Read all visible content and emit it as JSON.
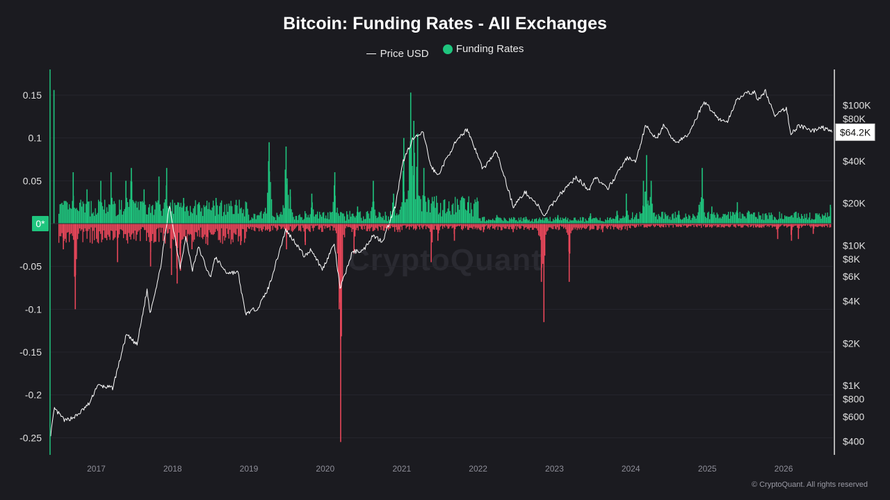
{
  "chart_data": {
    "type": "bar",
    "title": "Bitcoin: Funding Rates - All Exchanges",
    "legend": {
      "placement": "top-center",
      "entries": [
        {
          "name": "Price USD",
          "marker": "line",
          "color": "#ffffff"
        },
        {
          "name": "Funding Rates",
          "marker": "dot",
          "color": "#1fc57e"
        }
      ]
    },
    "colors": {
      "positive": "#1fc57e",
      "negative": "#e8475a",
      "price": "#ffffff",
      "zero_axis": "#1fc57e"
    },
    "x_axis": {
      "type": "date",
      "range": [
        "2016-05-25",
        "2026-08-25"
      ],
      "ticks": [
        {
          "date": "2017-01-01",
          "label": "2017"
        },
        {
          "date": "2018-01-01",
          "label": "2018"
        },
        {
          "date": "2019-01-01",
          "label": "2019"
        },
        {
          "date": "2020-01-01",
          "label": "2020"
        },
        {
          "date": "2021-01-01",
          "label": "2021"
        },
        {
          "date": "2022-01-01",
          "label": "2022"
        },
        {
          "date": "2023-01-01",
          "label": "2023"
        },
        {
          "date": "2024-01-01",
          "label": "2024"
        },
        {
          "date": "2025-01-01",
          "label": "2025"
        },
        {
          "date": "2026-01-01",
          "label": "2026"
        }
      ]
    },
    "y_left": {
      "name": "Funding Rates",
      "range": [
        -0.27,
        0.18
      ],
      "ticks": [
        {
          "value": 0.15,
          "label": "0.15"
        },
        {
          "value": 0.1,
          "label": "0.1"
        },
        {
          "value": 0.05,
          "label": "0.05"
        },
        {
          "value": 0,
          "label": "0*"
        },
        {
          "value": -0.05,
          "label": "-0.05"
        },
        {
          "value": -0.1,
          "label": "-0.1"
        },
        {
          "value": -0.15,
          "label": "-0.15"
        },
        {
          "value": -0.2,
          "label": "-0.2"
        },
        {
          "value": -0.25,
          "label": "-0.25"
        }
      ]
    },
    "y_right": {
      "name": "Price USD",
      "scale": "log",
      "range": [
        320,
        180000
      ],
      "ticks": [
        {
          "value": 100000,
          "label": "$100K"
        },
        {
          "value": 80000,
          "label": "$80K"
        },
        {
          "value": 40000,
          "label": "$40K"
        },
        {
          "value": 20000,
          "label": "$20K"
        },
        {
          "value": 10000,
          "label": "$10K"
        },
        {
          "value": 8000,
          "label": "$8K"
        },
        {
          "value": 6000,
          "label": "$6K"
        },
        {
          "value": 4000,
          "label": "$4K"
        },
        {
          "value": 2000,
          "label": "$2K"
        },
        {
          "value": 1000,
          "label": "$1K"
        },
        {
          "value": 800,
          "label": "$800"
        },
        {
          "value": 600,
          "label": "$600"
        },
        {
          "value": 400,
          "label": "$400"
        }
      ],
      "current": {
        "value": 64200,
        "label": "$64.2K"
      }
    },
    "grid": true,
    "price_series": [
      [
        "2016-05-28",
        450
      ],
      [
        "2016-06-15",
        680
      ],
      [
        "2016-08-05",
        560
      ],
      [
        "2016-10-01",
        610
      ],
      [
        "2016-12-01",
        750
      ],
      [
        "2017-01-05",
        1000
      ],
      [
        "2017-03-20",
        960
      ],
      [
        "2017-05-25",
        2300
      ],
      [
        "2017-07-15",
        1950
      ],
      [
        "2017-09-01",
        4800
      ],
      [
        "2017-09-15",
        3300
      ],
      [
        "2017-11-01",
        6500
      ],
      [
        "2017-12-17",
        19200
      ],
      [
        "2018-02-06",
        7000
      ],
      [
        "2018-03-05",
        11400
      ],
      [
        "2018-04-06",
        6700
      ],
      [
        "2018-05-05",
        9700
      ],
      [
        "2018-06-29",
        5900
      ],
      [
        "2018-07-25",
        8200
      ],
      [
        "2018-09-15",
        6400
      ],
      [
        "2018-11-10",
        6400
      ],
      [
        "2018-12-15",
        3250
      ],
      [
        "2019-02-15",
        3600
      ],
      [
        "2019-04-05",
        5000
      ],
      [
        "2019-06-26",
        12900
      ],
      [
        "2019-08-15",
        10300
      ],
      [
        "2019-09-25",
        8300
      ],
      [
        "2019-10-26",
        9400
      ],
      [
        "2019-12-18",
        6700
      ],
      [
        "2020-02-13",
        10300
      ],
      [
        "2020-03-12",
        4900
      ],
      [
        "2020-05-10",
        9000
      ],
      [
        "2020-07-01",
        9200
      ],
      [
        "2020-08-15",
        11800
      ],
      [
        "2020-10-01",
        10700
      ],
      [
        "2020-12-01",
        19000
      ],
      [
        "2021-01-08",
        40000
      ],
      [
        "2021-02-21",
        57000
      ],
      [
        "2021-04-14",
        63500
      ],
      [
        "2021-05-19",
        37000
      ],
      [
        "2021-06-22",
        31500
      ],
      [
        "2021-09-07",
        52000
      ],
      [
        "2021-11-10",
        68000
      ],
      [
        "2022-01-24",
        35000
      ],
      [
        "2022-03-29",
        47000
      ],
      [
        "2022-05-12",
        29000
      ],
      [
        "2022-06-18",
        19000
      ],
      [
        "2022-08-15",
        24000
      ],
      [
        "2022-10-15",
        19200
      ],
      [
        "2022-11-09",
        16000
      ],
      [
        "2023-01-25",
        23000
      ],
      [
        "2023-04-14",
        30500
      ],
      [
        "2023-06-15",
        25000
      ],
      [
        "2023-07-15",
        31000
      ],
      [
        "2023-09-11",
        25000
      ],
      [
        "2023-12-15",
        42500
      ],
      [
        "2024-01-23",
        39000
      ],
      [
        "2024-03-14",
        73000
      ],
      [
        "2024-05-01",
        57000
      ],
      [
        "2024-06-05",
        71000
      ],
      [
        "2024-08-05",
        54000
      ],
      [
        "2024-10-01",
        61000
      ],
      [
        "2024-12-17",
        106000
      ],
      [
        "2025-02-28",
        79000
      ],
      [
        "2025-04-08",
        76000
      ],
      [
        "2025-05-22",
        111000
      ],
      [
        "2025-07-14",
        122000
      ],
      [
        "2025-08-14",
        124000
      ],
      [
        "2025-09-01",
        108000
      ],
      [
        "2025-10-06",
        126000
      ],
      [
        "2025-11-21",
        83000
      ],
      [
        "2026-01-14",
        96000
      ],
      [
        "2026-02-05",
        62000
      ],
      [
        "2026-03-15",
        72000
      ],
      [
        "2026-05-15",
        65000
      ],
      [
        "2026-07-01",
        70000
      ],
      [
        "2026-08-20",
        64200
      ]
    ],
    "funding_spikes": [
      [
        "2016-06-10",
        0.156
      ],
      [
        "2016-09-10",
        0.06
      ],
      [
        "2016-11-15",
        0.04
      ],
      [
        "2017-01-20",
        0.05
      ],
      [
        "2017-03-10",
        0.06
      ],
      [
        "2017-05-20",
        0.05
      ],
      [
        "2017-06-15",
        0.065
      ],
      [
        "2017-08-15",
        0.04
      ],
      [
        "2017-10-25",
        0.055
      ],
      [
        "2017-12-01",
        0.065
      ],
      [
        "2018-02-20",
        0.03
      ],
      [
        "2018-05-05",
        0.025
      ],
      [
        "2018-07-25",
        0.03
      ],
      [
        "2019-04-05",
        0.095
      ],
      [
        "2019-06-25",
        0.09
      ],
      [
        "2019-07-15",
        0.04
      ],
      [
        "2019-10-26",
        0.035
      ],
      [
        "2020-02-13",
        0.06
      ],
      [
        "2020-06-01",
        0.02
      ],
      [
        "2020-08-15",
        0.05
      ],
      [
        "2020-11-20",
        0.035
      ],
      [
        "2021-01-08",
        0.1
      ],
      [
        "2021-02-10",
        0.153
      ],
      [
        "2021-02-25",
        0.12
      ],
      [
        "2021-03-15",
        0.105
      ],
      [
        "2021-04-14",
        0.065
      ],
      [
        "2021-06-01",
        0.02
      ],
      [
        "2021-10-20",
        0.03
      ],
      [
        "2021-11-10",
        0.025
      ],
      [
        "2022-03-29",
        0.01
      ],
      [
        "2022-08-15",
        0.008
      ],
      [
        "2023-01-15",
        0.01
      ],
      [
        "2023-06-20",
        0.012
      ],
      [
        "2023-10-25",
        0.015
      ],
      [
        "2023-12-08",
        0.035
      ],
      [
        "2024-02-28",
        0.05
      ],
      [
        "2024-03-14",
        0.08
      ],
      [
        "2024-04-05",
        0.05
      ],
      [
        "2024-08-15",
        0.015
      ],
      [
        "2024-11-20",
        0.022
      ],
      [
        "2024-12-05",
        0.065
      ],
      [
        "2025-01-20",
        0.02
      ],
      [
        "2025-05-22",
        0.025
      ],
      [
        "2025-07-14",
        0.015
      ],
      [
        "2026-06-01",
        0.012
      ],
      [
        "2026-08-10",
        0.022
      ]
    ],
    "funding_dips": [
      [
        "2016-09-20",
        -0.1
      ],
      [
        "2016-07-25",
        -0.03
      ],
      [
        "2017-04-10",
        -0.045
      ],
      [
        "2017-09-15",
        -0.05
      ],
      [
        "2017-12-24",
        -0.06
      ],
      [
        "2018-01-20",
        -0.07
      ],
      [
        "2018-02-05",
        -0.055
      ],
      [
        "2018-04-01",
        -0.03
      ],
      [
        "2018-06-15",
        -0.025
      ],
      [
        "2018-11-20",
        -0.025
      ],
      [
        "2019-06-27",
        -0.03
      ],
      [
        "2019-09-25",
        -0.025
      ],
      [
        "2020-03-12",
        -0.255
      ],
      [
        "2020-03-05",
        -0.1
      ],
      [
        "2020-05-15",
        -0.035
      ],
      [
        "2021-05-19",
        -0.045
      ],
      [
        "2021-06-20",
        -0.02
      ],
      [
        "2021-09-07",
        -0.02
      ],
      [
        "2022-01-24",
        -0.01
      ],
      [
        "2022-06-15",
        -0.01
      ],
      [
        "2022-11-09",
        -0.115
      ],
      [
        "2022-10-28",
        -0.068
      ],
      [
        "2023-03-10",
        -0.068
      ],
      [
        "2023-08-17",
        -0.01
      ],
      [
        "2025-12-01",
        -0.018
      ],
      [
        "2026-02-05",
        -0.02
      ],
      [
        "2026-03-10",
        -0.018
      ],
      [
        "2026-05-20",
        -0.012
      ]
    ]
  },
  "watermark": "CryptoQuant",
  "copyright": "© CryptoQuant. All rights reserved"
}
